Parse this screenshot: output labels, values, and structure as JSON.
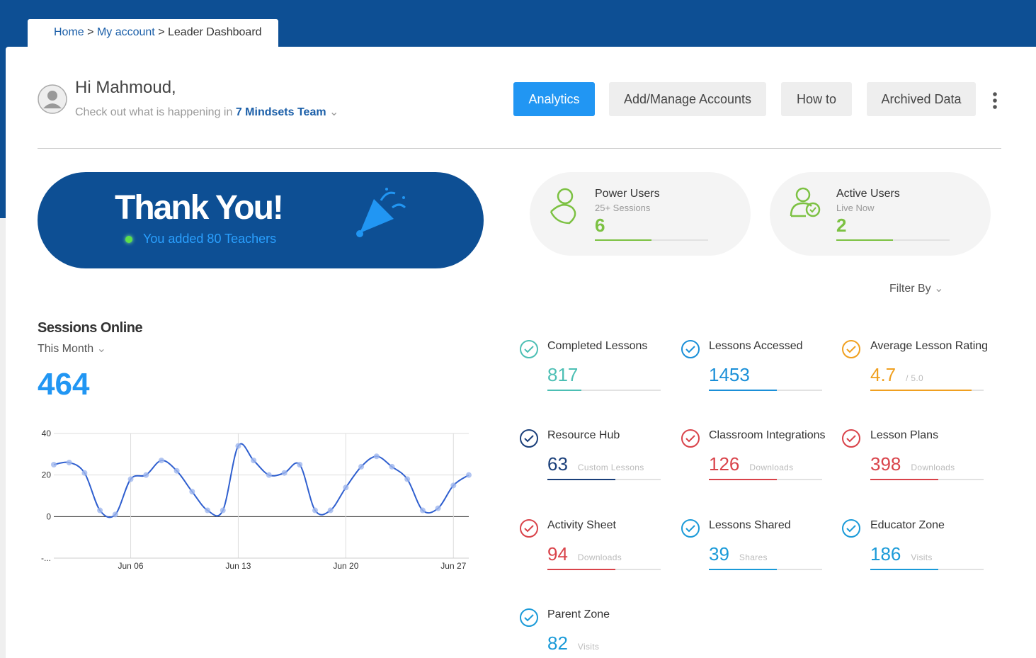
{
  "header": {
    "breadcrumb": [
      "Home",
      "My account",
      "Leader Dashboard"
    ],
    "separator": ">",
    "greeting": "Hi Mahmoud,",
    "subtitle": "Check out what is happening in",
    "team": "7 Mindsets Team",
    "buttons": [
      "Analytics",
      "Add/Manage Accounts",
      "How to",
      "Archived Data"
    ]
  },
  "banner": {
    "title": "Thank You!",
    "text": "You added 80 Teachers"
  },
  "stat_cards": [
    {
      "title": "Power Users",
      "subtitle": "25+ Sessions",
      "value": 6
    },
    {
      "title": "Active Users",
      "subtitle": "Live Now",
      "value": 2
    }
  ],
  "filter": "Filter By",
  "sessions": {
    "title": "Sessions Online",
    "period": "This Month",
    "total": 464
  },
  "chart_data": {
    "type": "line",
    "x": [
      1,
      2,
      3,
      4,
      5,
      6,
      7,
      8,
      9,
      10,
      11,
      12,
      13,
      14,
      15,
      16,
      17,
      18,
      19,
      20,
      21,
      22,
      23,
      24,
      25,
      26,
      27,
      28
    ],
    "series": [
      {
        "color": "#2f5fcf",
        "values": [
          25,
          26,
          21,
          3,
          1,
          18,
          20,
          27,
          22,
          12,
          3,
          3,
          34,
          27,
          20,
          21,
          25,
          3,
          3,
          14,
          24,
          29,
          24,
          18,
          3,
          4,
          15,
          20
        ]
      }
    ],
    "xlim": [
      1,
      28
    ],
    "xticks": [
      {
        "value": 6,
        "label": "Jun 06"
      },
      {
        "value": 13,
        "label": "Jun 13"
      },
      {
        "value": 20,
        "label": "Jun 20"
      },
      {
        "value": 27,
        "label": "Jun 27"
      }
    ],
    "ylim": [
      -20,
      40
    ],
    "yticks": [
      {
        "value": -20,
        "label": "-..."
      },
      0,
      20,
      40
    ],
    "grid": true
  },
  "metrics": [
    {
      "name": "Completed Lessons",
      "value": 817,
      "color": "#4cbfb4"
    },
    {
      "name": "Lessons Accessed",
      "value": 1453,
      "color": "#1a8fd8"
    },
    {
      "name": "Average Lesson Rating",
      "value": 4.7,
      "unit": "/ 5.0",
      "color": "#f0a020"
    },
    {
      "name": "Resource Hub",
      "value": 63,
      "unit": "Custom Lessons",
      "color": "#1a3f7a"
    },
    {
      "name": "Classroom Integrations",
      "value": 126,
      "unit": "Downloads",
      "color": "#d9434a"
    },
    {
      "name": "Lesson Plans",
      "value": 398,
      "unit": "Downloads",
      "color": "#d9434a"
    },
    {
      "name": "Activity Sheet",
      "value": 94,
      "unit": "Downloads",
      "color": "#d9434a"
    },
    {
      "name": "Lessons Shared",
      "value": 39,
      "unit": "Shares",
      "color": "#1a9ad8"
    },
    {
      "name": "Educator Zone",
      "value": 186,
      "unit": "Visits",
      "color": "#1a9ad8"
    },
    {
      "name": "Parent Zone",
      "value": 82,
      "unit": "Visits",
      "color": "#1a9ad8"
    }
  ]
}
